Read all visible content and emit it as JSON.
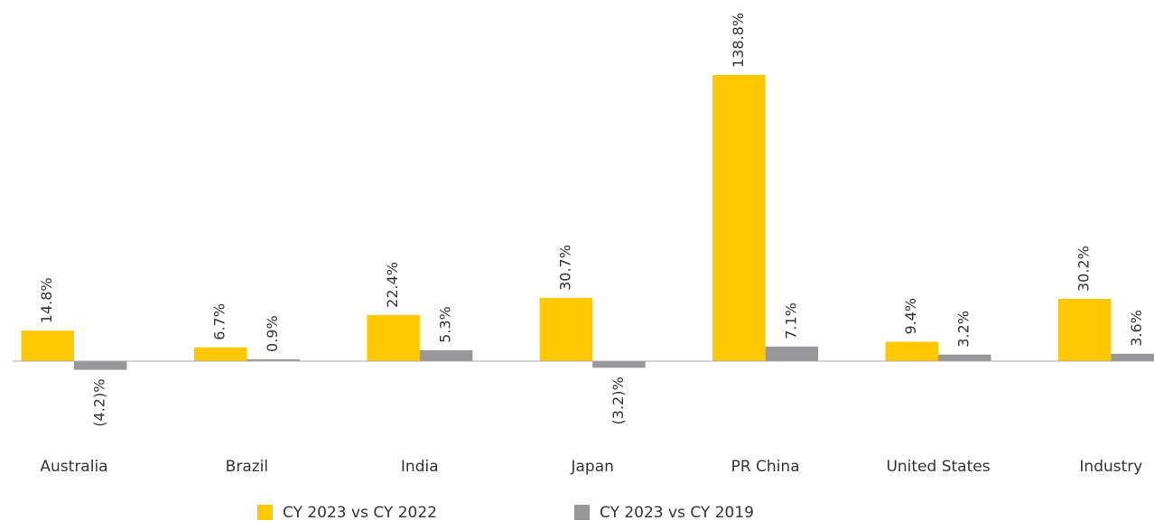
{
  "chart_data": {
    "type": "bar",
    "categories": [
      "Australia",
      "Brazil",
      "India",
      "Japan",
      "PR China",
      "United States",
      "Industry"
    ],
    "series": [
      {
        "name": "CY 2023 vs CY 2022",
        "color": "#ffc800",
        "values": [
          14.8,
          6.7,
          22.4,
          30.7,
          138.8,
          9.4,
          30.2
        ],
        "value_labels": [
          "14.8%",
          "6.7%",
          "22.4%",
          "30.7%",
          "138.8%",
          "9.4%",
          "30.2%"
        ]
      },
      {
        "name": "CY 2023 vs CY 2019",
        "color": "#98989a",
        "values": [
          -4.2,
          0.9,
          5.3,
          -3.2,
          7.1,
          3.2,
          3.6
        ],
        "value_labels": [
          "(4.2)%",
          "0.9%",
          "5.3%",
          "(3.2)%",
          "7.1%",
          "3.2%",
          "3.6%"
        ]
      }
    ]
  }
}
